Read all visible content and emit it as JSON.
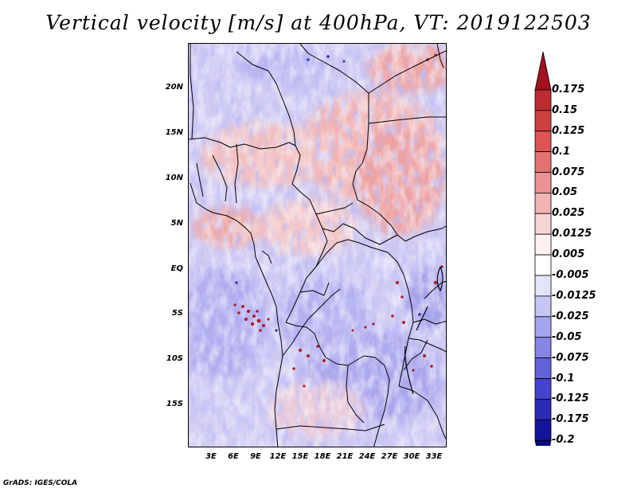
{
  "title": "Vertical velocity [m/s] at 400hPa, VT: 2019122503",
  "credit": "GrADS: IGES/COLA",
  "map": {
    "lat_labels": [
      "20N",
      "15N",
      "10N",
      "5N",
      "EQ",
      "5S",
      "10S",
      "15S"
    ],
    "lon_labels": [
      "3E",
      "6E",
      "9E",
      "12E",
      "15E",
      "18E",
      "21E",
      "24E",
      "27E",
      "30E",
      "33E"
    ],
    "field": "vertical velocity",
    "level": "400hPa",
    "valid_time": "2019122503"
  },
  "colorbar": {
    "labels": [
      "0.175",
      "0.15",
      "0.125",
      "0.1",
      "0.075",
      "0.05",
      "0.025",
      "0.0125",
      "0.005",
      "-0.005",
      "-0.0125",
      "-0.025",
      "-0.05",
      "-0.075",
      "-0.1",
      "-0.125",
      "-0.175",
      "-0.2"
    ],
    "colors": [
      "#a3101f",
      "#bd2b30",
      "#d03f3f",
      "#dd5555",
      "#e47272",
      "#ec9292",
      "#f2b3b3",
      "#f8d5d5",
      "#fdf0f0",
      "#ffffff",
      "#e3e3fa",
      "#c6c6f4",
      "#a5a5ee",
      "#8585e6",
      "#6363db",
      "#4444cc",
      "#2a2ab4",
      "#14149a",
      "#0a0a80"
    ]
  }
}
